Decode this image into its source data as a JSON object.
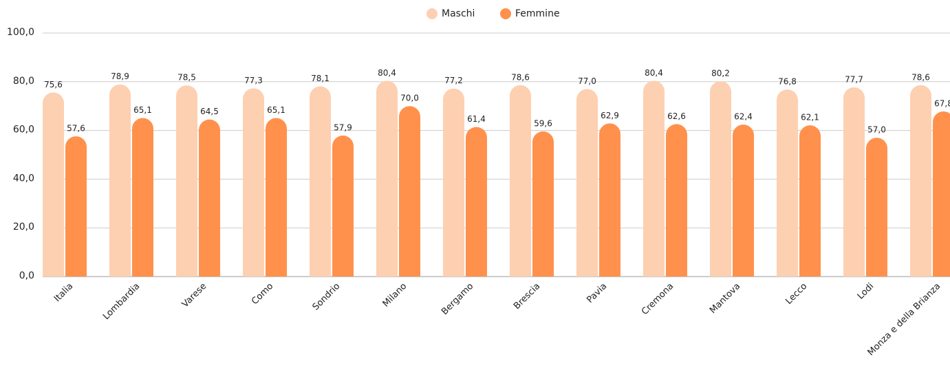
{
  "chart_data": {
    "type": "bar",
    "categories": [
      "Italia",
      "Lombardia",
      "Varese",
      "Como",
      "Sondrio",
      "Milano",
      "Bergamo",
      "Brescia",
      "Pavia",
      "Cremona",
      "Mantova",
      "Lecco",
      "Lodi",
      "Monza e della Brianza"
    ],
    "series": [
      {
        "name": "Maschi",
        "color": "#fdd0b1",
        "values": [
          75.6,
          78.9,
          78.5,
          77.3,
          78.1,
          80.4,
          77.2,
          78.6,
          77.0,
          80.4,
          80.2,
          76.8,
          77.7,
          78.6
        ],
        "value_labels": [
          "75,6",
          "78,9",
          "78,5",
          "77,3",
          "78,1",
          "80,4",
          "77,2",
          "78,6",
          "77,0",
          "80,4",
          "80,2",
          "76,8",
          "77,7",
          "78,6"
        ]
      },
      {
        "name": "Femmine",
        "color": "#ff914d",
        "values": [
          57.6,
          65.1,
          64.5,
          65.1,
          57.9,
          70.0,
          61.4,
          59.6,
          62.9,
          62.6,
          62.4,
          62.1,
          57.0,
          67.8
        ],
        "value_labels": [
          "57,6",
          "65,1",
          "64,5",
          "65,1",
          "57,9",
          "70,0",
          "61,4",
          "59,6",
          "62,9",
          "62,6",
          "62,4",
          "62,1",
          "57,0",
          "67,8"
        ]
      }
    ],
    "ylim": [
      0,
      100
    ],
    "yticks": [
      {
        "value": 0,
        "label": "0,0"
      },
      {
        "value": 20,
        "label": "20,0"
      },
      {
        "value": 40,
        "label": "40,0"
      },
      {
        "value": 60,
        "label": "60,0"
      },
      {
        "value": 80,
        "label": "80,0"
      },
      {
        "value": 100,
        "label": "100,0"
      }
    ],
    "grid": true,
    "legend": "top"
  }
}
